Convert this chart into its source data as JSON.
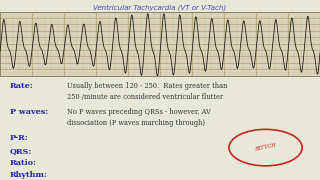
{
  "title": "Ventricular Tachycardia (VT or V-Tach)",
  "title_color": "#4444bb",
  "bg_color": "#e8e8d8",
  "ecg_bg": "#e0dcc8",
  "grid_minor_color": "#c8b898",
  "grid_major_color": "#b8a070",
  "label_color": "#2222aa",
  "text_color": "#333333",
  "rate_label": "Rate:",
  "rate_text": "Usually between 120 - 250.  Rates greater than\n250 /minute are considered ventricular flutter",
  "pwaves_label": "P waves:",
  "pwaves_text": "No P waves preceding QRSs - however, AV\ndissociation (P waves marching through)",
  "pr_label": "P-R:",
  "qrs_label": "QRS:",
  "ratio_label": "Ratio:",
  "rhythm_label": "Rhythm:",
  "stamp_color": "#cc2222",
  "stamp_text": "RITTCH"
}
